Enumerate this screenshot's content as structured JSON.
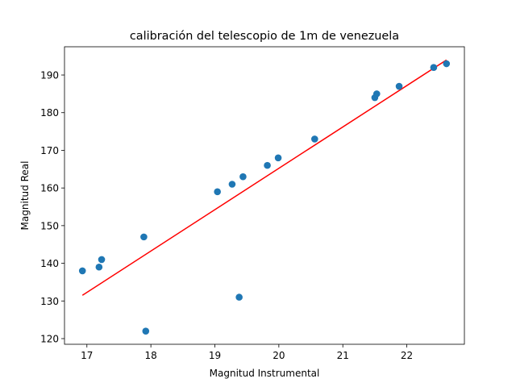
{
  "chart_data": {
    "type": "scatter",
    "title": "calibración del telescopio de 1m de venezuela",
    "xlabel": "Magnitud Instrumental",
    "ylabel": "Magnitud Real",
    "xlim": [
      16.65,
      22.9
    ],
    "ylim": [
      118.5,
      197.5
    ],
    "xticks": [
      17,
      18,
      19,
      20,
      21,
      22
    ],
    "yticks": [
      120,
      130,
      140,
      150,
      160,
      170,
      180,
      190
    ],
    "grid": false,
    "legend": "none",
    "colors": {
      "points": "#1f77b4",
      "fit_line": "#ff0000"
    },
    "series": [
      {
        "kind": "scatter",
        "points": [
          {
            "x": 16.93,
            "y": 138
          },
          {
            "x": 17.19,
            "y": 139
          },
          {
            "x": 17.23,
            "y": 141
          },
          {
            "x": 17.89,
            "y": 147
          },
          {
            "x": 17.92,
            "y": 122
          },
          {
            "x": 19.04,
            "y": 159
          },
          {
            "x": 19.27,
            "y": 161
          },
          {
            "x": 19.38,
            "y": 131
          },
          {
            "x": 19.44,
            "y": 163
          },
          {
            "x": 19.82,
            "y": 166
          },
          {
            "x": 19.99,
            "y": 168
          },
          {
            "x": 20.56,
            "y": 173
          },
          {
            "x": 21.5,
            "y": 184
          },
          {
            "x": 21.53,
            "y": 185
          },
          {
            "x": 21.88,
            "y": 187
          },
          {
            "x": 22.42,
            "y": 192
          },
          {
            "x": 22.62,
            "y": 193
          }
        ]
      },
      {
        "kind": "line",
        "points": [
          {
            "x": 16.93,
            "y": 131.5
          },
          {
            "x": 22.62,
            "y": 194.0
          }
        ]
      }
    ]
  }
}
